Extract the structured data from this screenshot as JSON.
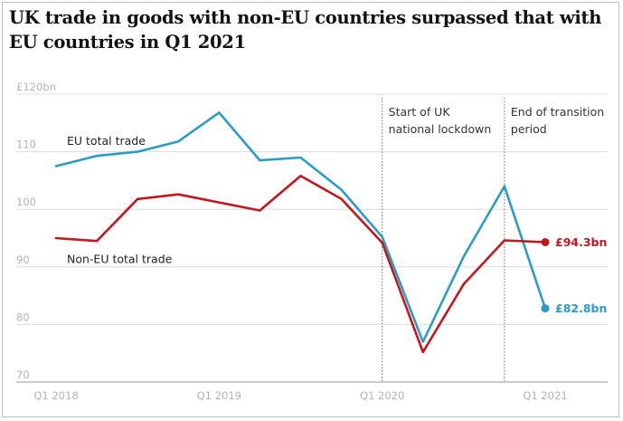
{
  "chart_data": {
    "type": "line",
    "title": "UK trade in goods with non-EU countries surpassed that with EU countries in Q1 2021",
    "x": [
      "Q1 2018",
      "Q2 2018",
      "Q3 2018",
      "Q4 2018",
      "Q1 2019",
      "Q2 2019",
      "Q3 2019",
      "Q4 2019",
      "Q1 2020",
      "Q2 2020",
      "Q3 2020",
      "Q4 2020",
      "Q1 2021"
    ],
    "x_tick_labels": [
      "Q1 2018",
      "Q1 2019",
      "Q1 2020",
      "Q1 2021"
    ],
    "y_tick_labels": [
      "£120bn",
      "110",
      "100",
      "90",
      "80",
      "70"
    ],
    "y_ticks": [
      120,
      110,
      100,
      90,
      80,
      70
    ],
    "ylim": [
      70,
      120
    ],
    "grid": true,
    "series": [
      {
        "name": "EU total trade",
        "color": "#2b9cc4",
        "values": [
          107.5,
          109.3,
          110,
          111.8,
          116.8,
          108.5,
          109,
          103.4,
          95.2,
          77,
          91.8,
          104,
          82.8
        ],
        "end_label": "£82.8bn"
      },
      {
        "name": "Non-EU total trade",
        "color": "#c4161c",
        "values": [
          95,
          94.5,
          101.8,
          102.6,
          101.2,
          99.8,
          105.8,
          101.8,
          94.2,
          75.2,
          87,
          94.6,
          94.3
        ],
        "end_label": "£94.3bn"
      }
    ],
    "annotations": [
      {
        "at": "Q1 2020",
        "lines": [
          "Start of UK",
          "national lockdown"
        ]
      },
      {
        "at": "Q4 2020",
        "lines": [
          "End of transition",
          "period"
        ]
      }
    ]
  }
}
